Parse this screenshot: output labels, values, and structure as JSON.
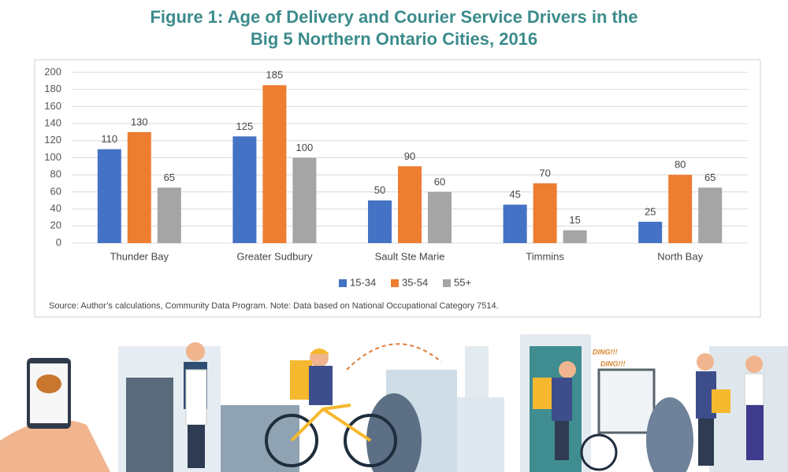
{
  "chart_data": {
    "type": "bar",
    "title": "Figure 1: Age of Delivery and Courier Service Drivers in the Big 5 Northern Ontario Cities, 2016",
    "categories": [
      "Thunder Bay",
      "Greater Sudbury",
      "Sault Ste Marie",
      "Timmins",
      "North Bay"
    ],
    "series": [
      {
        "name": "15-34",
        "color": "#4472c4",
        "values": [
          110,
          125,
          50,
          45,
          25
        ]
      },
      {
        "name": "35-54",
        "color": "#ed7d31",
        "values": [
          130,
          185,
          90,
          70,
          80
        ]
      },
      {
        "name": "55+",
        "color": "#a5a5a5",
        "values": [
          65,
          100,
          60,
          15,
          65
        ]
      }
    ],
    "ylim": [
      0,
      200
    ],
    "yticks": [
      0,
      20,
      40,
      60,
      80,
      100,
      120,
      140,
      160,
      180,
      200
    ],
    "grid": true,
    "legend": "bottom",
    "source": "Source: Author’s calculations, Community Data Program. Note: Data based on National Occupational Category 7514.",
    "annotations": [
      "DING!!!",
      "DING!!!"
    ]
  }
}
